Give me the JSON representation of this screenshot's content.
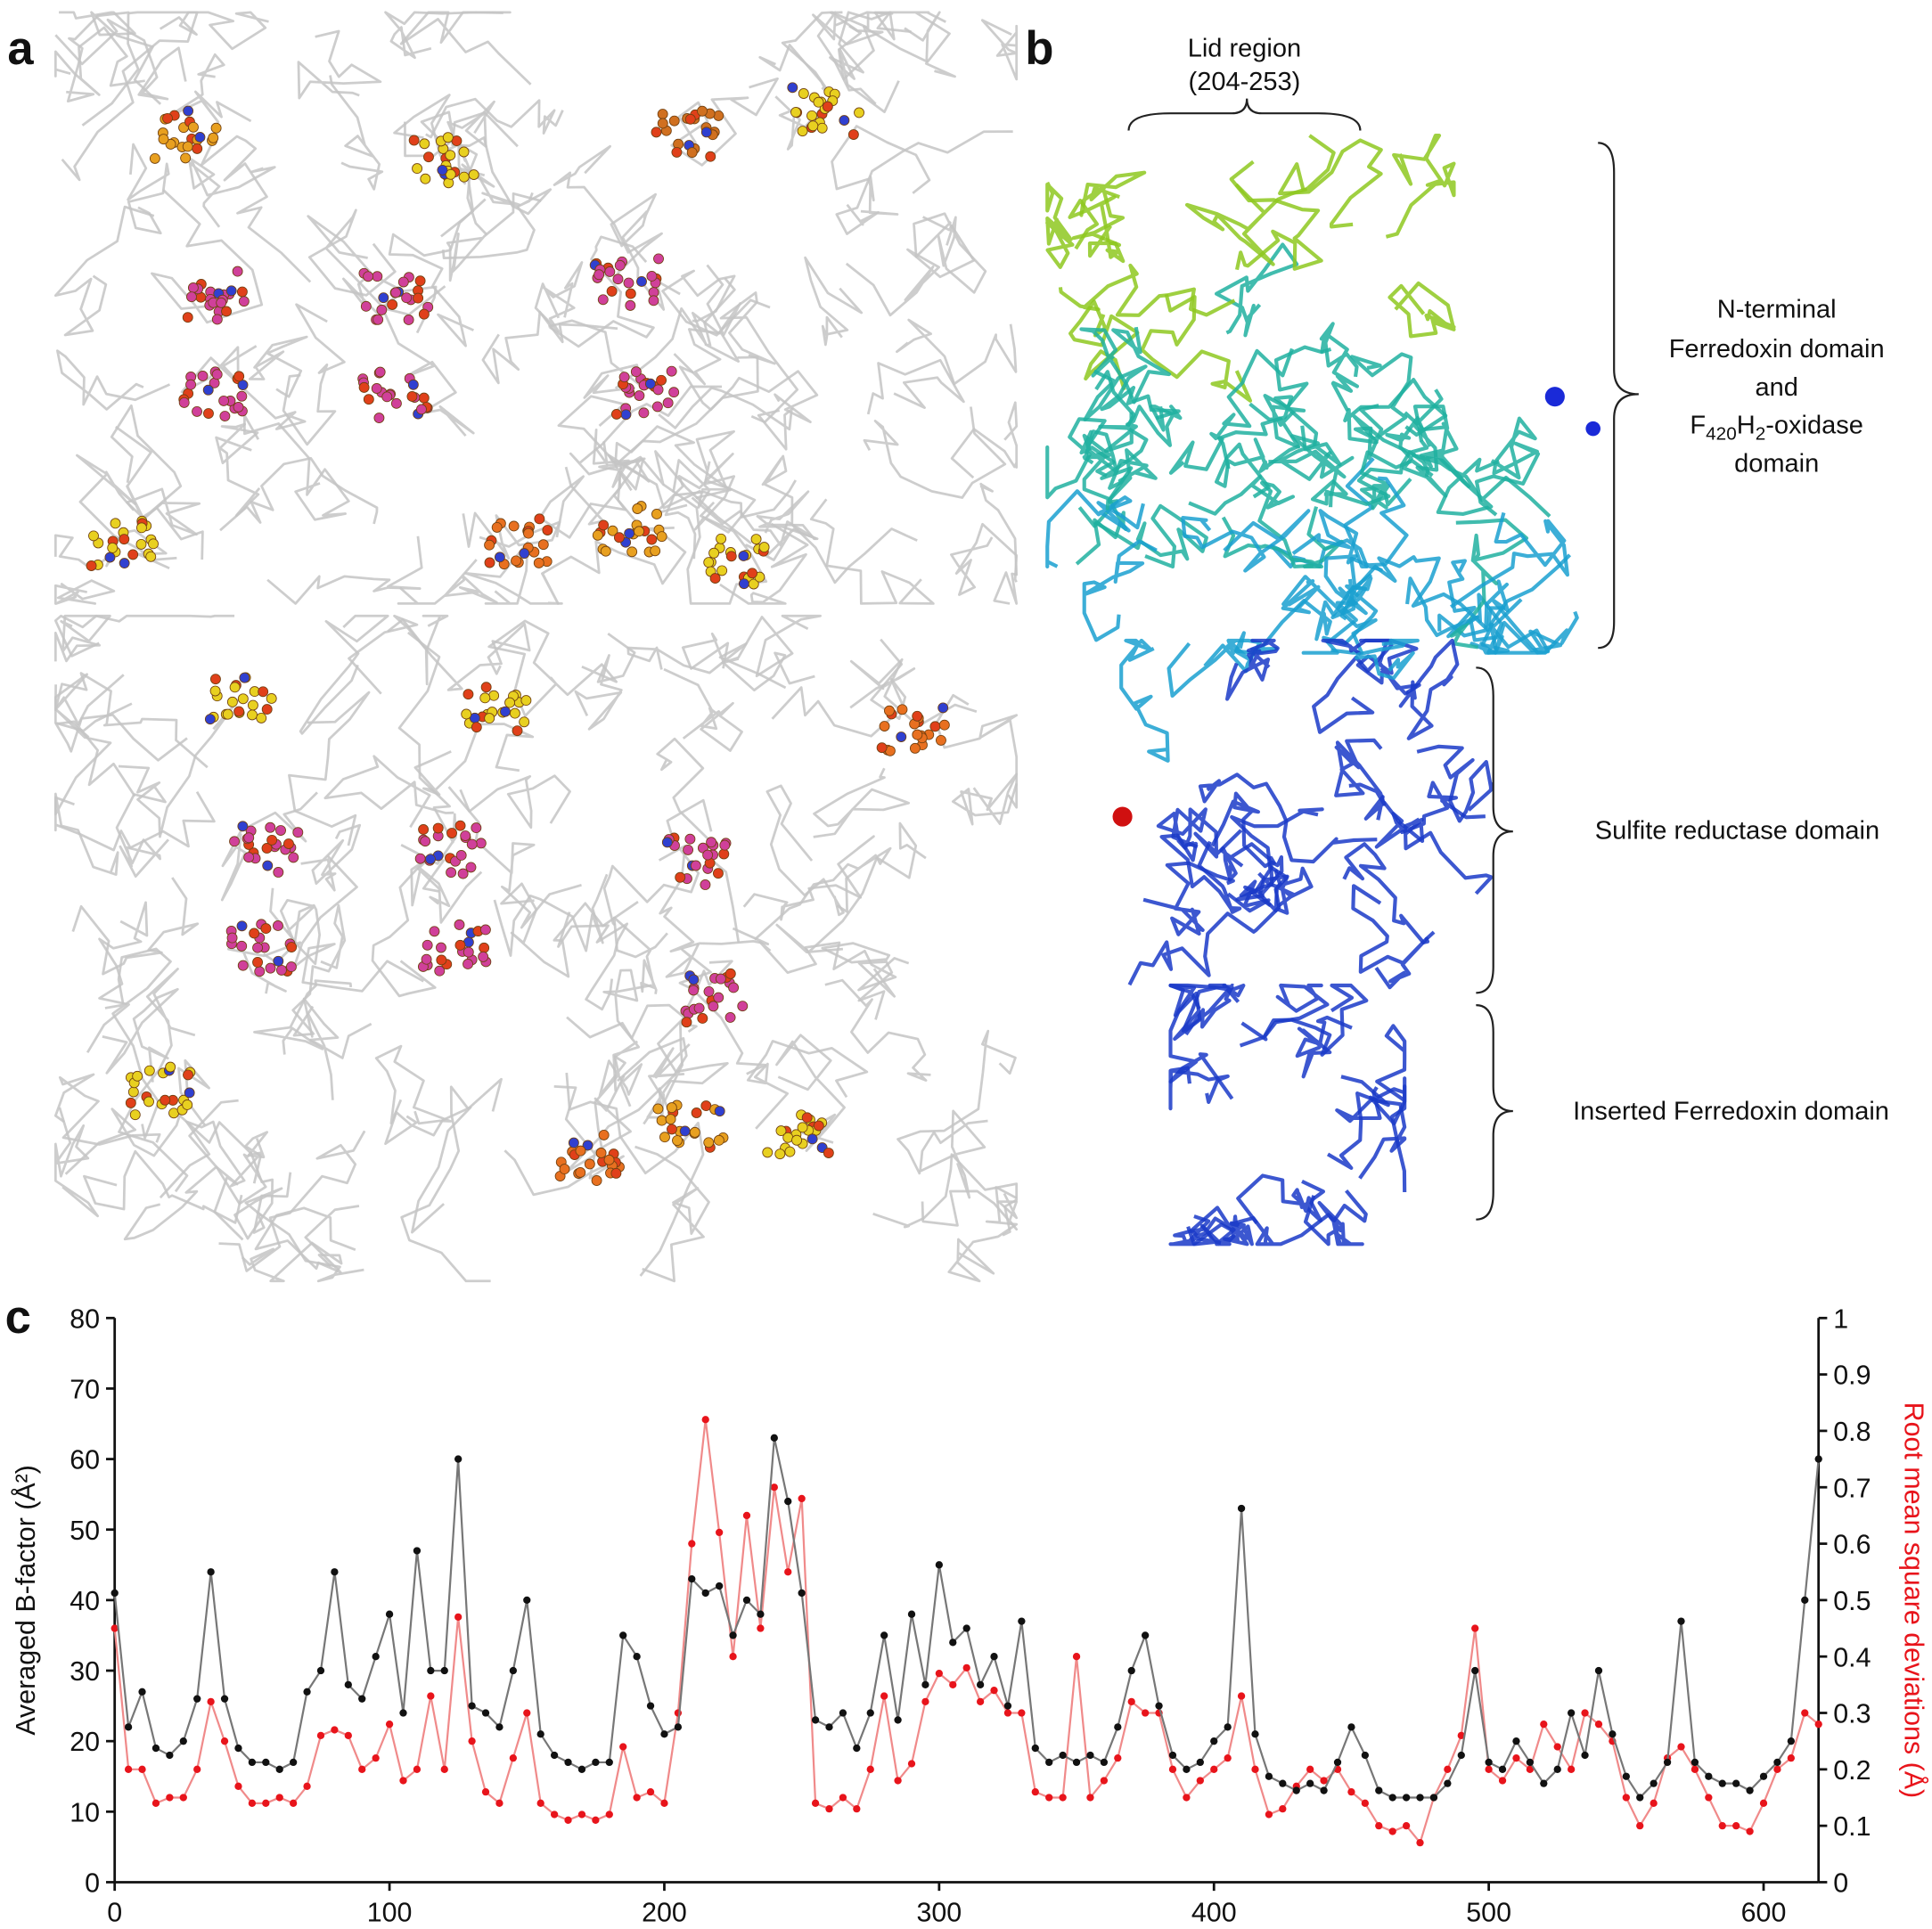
{
  "panel_labels": [
    "a",
    "b",
    "c"
  ],
  "structure_annotations": {
    "lid_region": [
      "Lid region",
      "(204-253)"
    ],
    "n_terminal": [
      "N-terminal",
      "Ferredoxin domain",
      "and",
      [
        "F",
        "420",
        "H",
        "2",
        "-oxidase"
      ],
      "domain"
    ],
    "sulfite_reductase": "Sulfite reductase domain",
    "inserted_ferredoxin": "Inserted Ferredoxin domain"
  },
  "chart_data": {
    "type": "line",
    "y_label": "Averaged B-factor (Å²)",
    "y2_label": "Root mean square deviations (Å)",
    "x": [
      0,
      5,
      10,
      15,
      20,
      25,
      30,
      35,
      40,
      45,
      50,
      55,
      60,
      65,
      70,
      75,
      80,
      85,
      90,
      95,
      100,
      105,
      110,
      115,
      120,
      125,
      130,
      135,
      140,
      145,
      150,
      155,
      160,
      165,
      170,
      175,
      180,
      185,
      190,
      195,
      200,
      205,
      210,
      215,
      220,
      225,
      230,
      235,
      240,
      245,
      250,
      255,
      260,
      265,
      270,
      275,
      280,
      285,
      290,
      295,
      300,
      305,
      310,
      315,
      320,
      325,
      330,
      335,
      340,
      345,
      350,
      355,
      360,
      365,
      370,
      375,
      380,
      385,
      390,
      395,
      400,
      405,
      410,
      415,
      420,
      425,
      430,
      435,
      440,
      445,
      450,
      455,
      460,
      465,
      470,
      475,
      480,
      485,
      490,
      495,
      500,
      505,
      510,
      515,
      520,
      525,
      530,
      535,
      540,
      545,
      550,
      555,
      560,
      565,
      570,
      575,
      580,
      585,
      590,
      595,
      600,
      605,
      610,
      615,
      620
    ],
    "series": [
      {
        "color": "#111111",
        "line_color": "#777777",
        "axis": "y",
        "values": [
          41,
          22,
          27,
          19,
          18,
          20,
          26,
          44,
          26,
          19,
          17,
          17,
          16,
          17,
          27,
          30,
          44,
          28,
          26,
          32,
          38,
          24,
          47,
          30,
          30,
          60,
          25,
          24,
          22,
          30,
          40,
          21,
          18,
          17,
          16,
          17,
          17,
          35,
          32,
          25,
          21,
          22,
          43,
          41,
          42,
          35,
          40,
          38,
          63,
          54,
          41,
          23,
          22,
          24,
          19,
          24,
          35,
          23,
          38,
          28,
          45,
          34,
          36,
          28,
          32,
          25,
          37,
          19,
          17,
          18,
          17,
          18,
          17,
          22,
          30,
          35,
          25,
          18,
          16,
          17,
          20,
          22,
          53,
          21,
          15,
          14,
          13,
          14,
          13,
          17,
          22,
          18,
          13,
          12,
          12,
          12,
          12,
          14,
          18,
          30,
          17,
          16,
          20,
          17,
          14,
          16,
          24,
          18,
          30,
          21,
          15,
          12,
          14,
          17,
          37,
          17,
          15,
          14,
          14,
          13,
          15,
          17,
          20,
          40,
          60
        ]
      },
      {
        "color": "#e8141b",
        "line_color": "#f08a8a",
        "axis": "y2",
        "values": [
          0.45,
          0.2,
          0.2,
          0.14,
          0.15,
          0.15,
          0.2,
          0.32,
          0.25,
          0.17,
          0.14,
          0.14,
          0.15,
          0.14,
          0.17,
          0.26,
          0.27,
          0.26,
          0.2,
          0.22,
          0.28,
          0.18,
          0.2,
          0.33,
          0.2,
          0.47,
          0.25,
          0.16,
          0.14,
          0.22,
          0.3,
          0.14,
          0.12,
          0.11,
          0.12,
          0.11,
          0.12,
          0.24,
          0.15,
          0.16,
          0.14,
          0.3,
          0.6,
          0.82,
          0.62,
          0.4,
          0.65,
          0.45,
          0.7,
          0.55,
          0.68,
          0.14,
          0.13,
          0.15,
          0.13,
          0.2,
          0.33,
          0.18,
          0.21,
          0.32,
          0.37,
          0.35,
          0.38,
          0.32,
          0.34,
          0.3,
          0.3,
          0.16,
          0.15,
          0.15,
          0.4,
          0.15,
          0.18,
          0.22,
          0.32,
          0.3,
          0.3,
          0.2,
          0.15,
          0.18,
          0.2,
          0.22,
          0.33,
          0.2,
          0.12,
          0.13,
          0.17,
          0.2,
          0.18,
          0.2,
          0.16,
          0.14,
          0.1,
          0.09,
          0.1,
          0.07,
          0.15,
          0.2,
          0.26,
          0.45,
          0.2,
          0.18,
          0.22,
          0.2,
          0.28,
          0.24,
          0.2,
          0.3,
          0.28,
          0.25,
          0.15,
          0.1,
          0.14,
          0.22,
          0.24,
          0.2,
          0.15,
          0.1,
          0.1,
          0.09,
          0.14,
          0.2,
          0.22,
          0.3,
          0.28
        ]
      }
    ],
    "xlim": [
      0,
      620
    ],
    "xticks": [
      0,
      100,
      200,
      300,
      400,
      500,
      600
    ],
    "ylim": [
      0,
      80
    ],
    "yticks": [
      0,
      10,
      20,
      30,
      40,
      50,
      60,
      70,
      80
    ],
    "y2lim": [
      0,
      1
    ],
    "y2ticks": [
      0,
      0.1,
      0.2,
      0.3,
      0.4,
      0.5,
      0.6,
      0.7,
      0.8,
      0.9,
      1
    ]
  }
}
